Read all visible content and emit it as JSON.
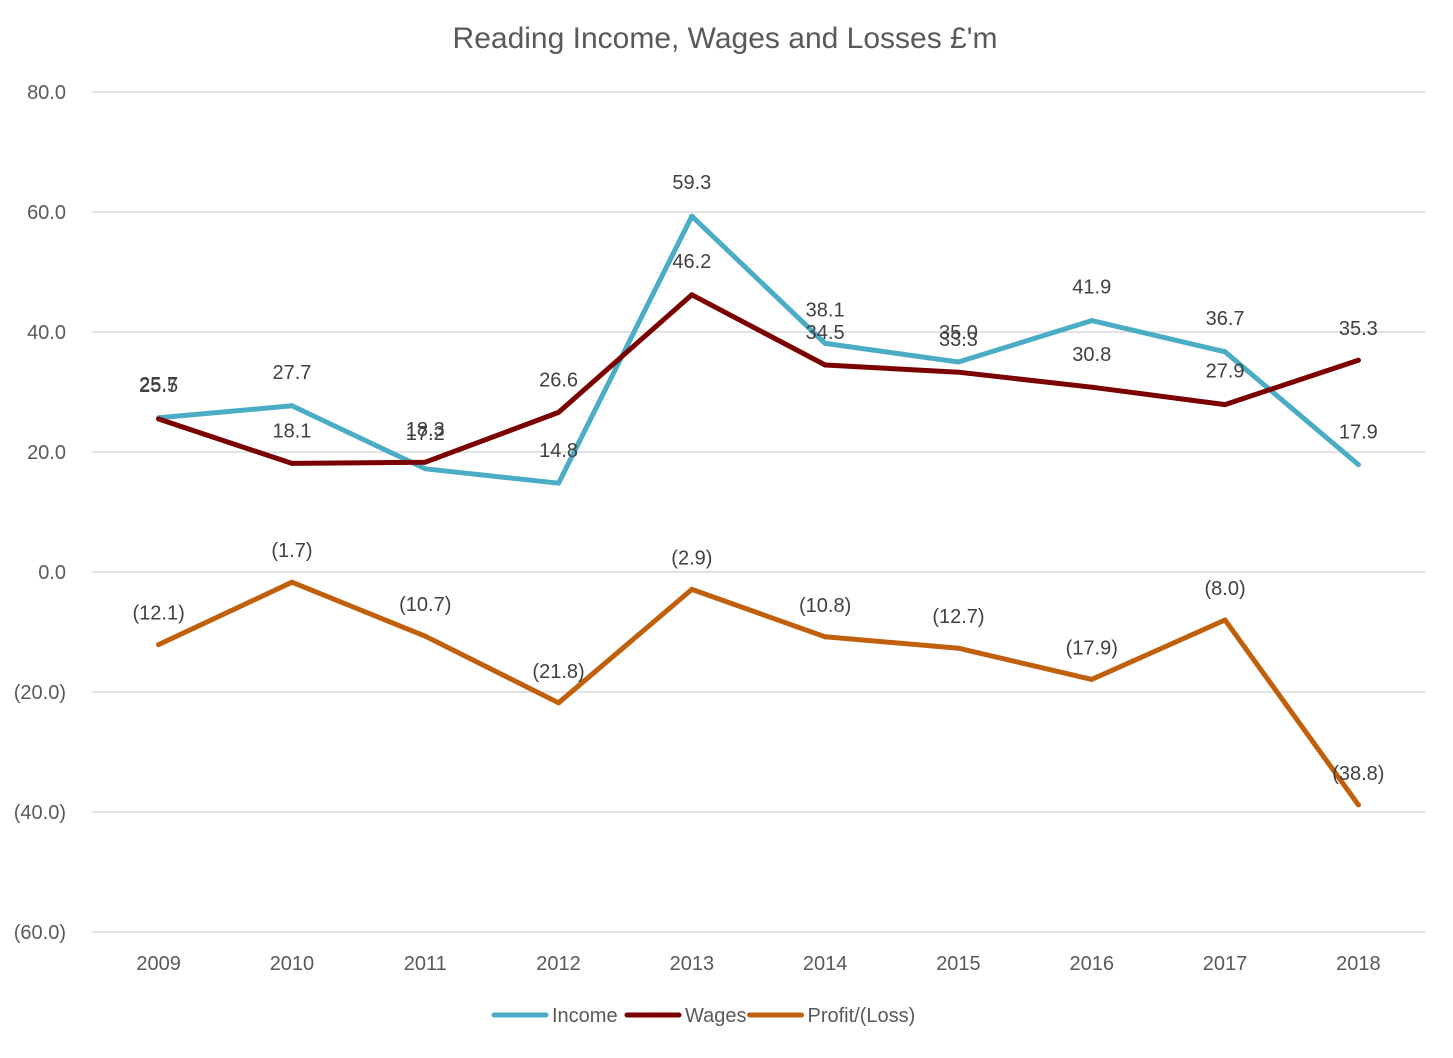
{
  "chart_data": {
    "type": "line",
    "title": "Reading Income, Wages and Losses £'m",
    "categories": [
      "2009",
      "2010",
      "2011",
      "2012",
      "2013",
      "2014",
      "2015",
      "2016",
      "2017",
      "2018"
    ],
    "ylim": [
      -60,
      80
    ],
    "y_ticks": [
      80,
      60,
      40,
      20,
      0,
      -20,
      -40,
      -60
    ],
    "y_tick_labels": [
      "80.0",
      "60.0",
      "40.0",
      "20.0",
      "0.0",
      "(20.0)",
      "(40.0)",
      "(60.0)"
    ],
    "grid": true,
    "legend_position": "bottom",
    "series": [
      {
        "name": "Income",
        "color": "#4bacc6",
        "values": [
          25.7,
          27.7,
          17.2,
          14.8,
          59.3,
          38.1,
          35.0,
          41.9,
          36.7,
          17.9
        ],
        "labels": [
          "25.7",
          "27.7",
          "17.2",
          "14.8",
          "59.3",
          "38.1",
          "35.0",
          "41.9",
          "36.7",
          "17.9"
        ]
      },
      {
        "name": "Wages",
        "color": "#7b0000",
        "values": [
          25.5,
          18.1,
          18.3,
          26.6,
          46.2,
          34.5,
          33.3,
          30.8,
          27.9,
          35.3
        ],
        "labels": [
          "25.5",
          "18.1",
          "18.3",
          "26.6",
          "46.2",
          "34.5",
          "33.3",
          "30.8",
          "27.9",
          "35.3"
        ]
      },
      {
        "name": "Profit/(Loss)",
        "color": "#c0600c",
        "values": [
          -12.1,
          -1.7,
          -10.7,
          -21.8,
          -2.9,
          -10.8,
          -12.7,
          -17.9,
          -8.0,
          -38.8
        ],
        "labels": [
          "(12.1)",
          "(1.7)",
          "(10.7)",
          "(21.8)",
          "(2.9)",
          "(10.8)",
          "(12.7)",
          "(17.9)",
          "(8.0)",
          "(38.8)"
        ]
      }
    ]
  }
}
